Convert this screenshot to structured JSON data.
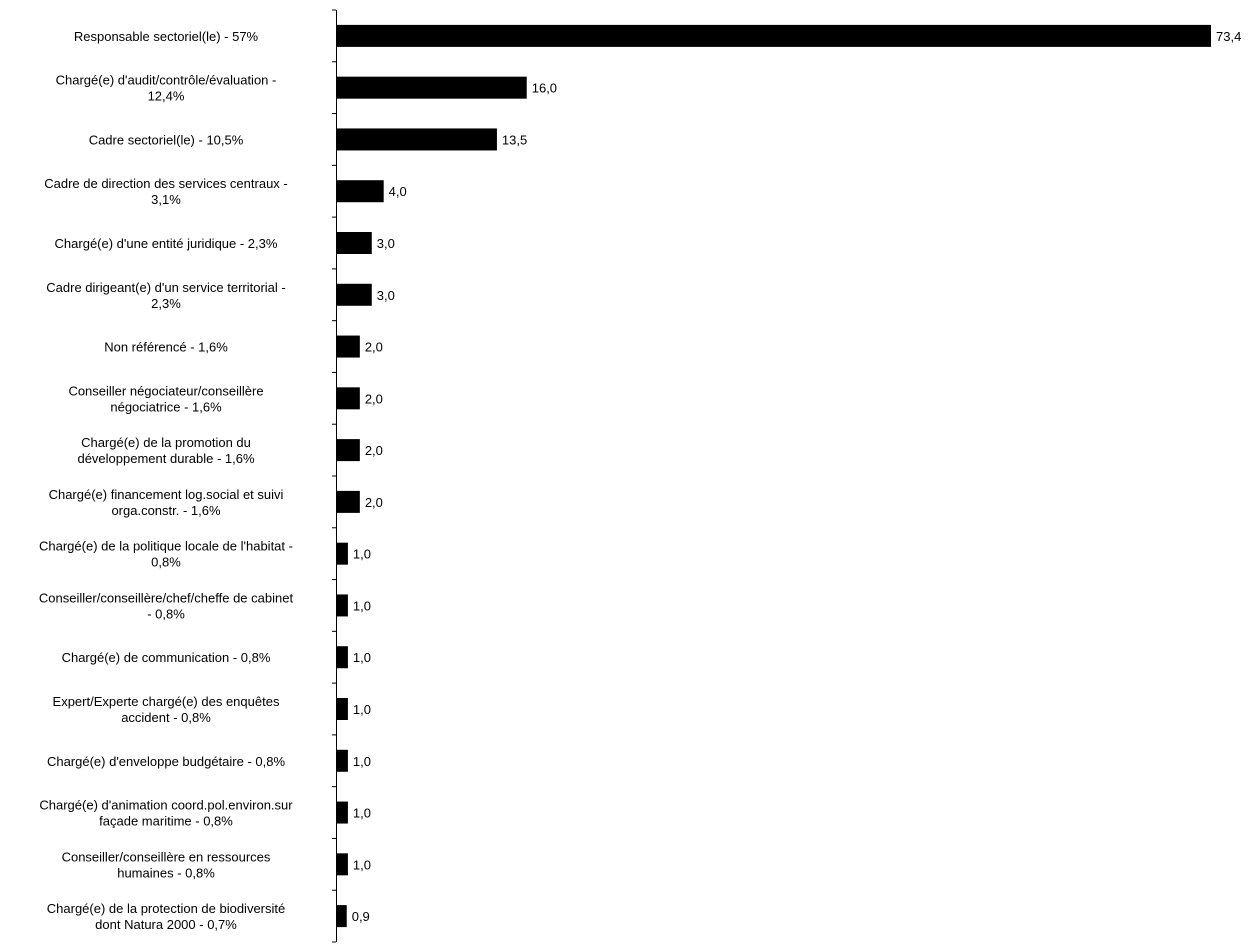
{
  "chart_data": {
    "type": "bar",
    "orientation": "horizontal",
    "title": "",
    "xlabel": "",
    "ylabel": "",
    "grid": false,
    "legend": "none",
    "bar_color": "#000000",
    "xlim": [
      0,
      73.4
    ],
    "categories": [
      [
        "Responsable sectoriel(le) - 57%"
      ],
      [
        "Chargé(e) d'audit/contrôle/évaluation -",
        "12,4%"
      ],
      [
        "Cadre sectoriel(le) - 10,5%"
      ],
      [
        "Cadre de direction des services centraux -",
        "3,1%"
      ],
      [
        "Chargé(e) d'une entité juridique - 2,3%"
      ],
      [
        "Cadre dirigeant(e) d'un service territorial -",
        "2,3%"
      ],
      [
        "Non référencé - 1,6%"
      ],
      [
        "Conseiller négociateur/conseillère",
        "négociatrice - 1,6%"
      ],
      [
        "Chargé(e) de la promotion du",
        "développement durable - 1,6%"
      ],
      [
        "Chargé(e) financement log.social et suivi",
        "orga.constr. - 1,6%"
      ],
      [
        "Chargé(e) de la politique locale de l'habitat -",
        "0,8%"
      ],
      [
        "Conseiller/conseillère/chef/cheffe de cabinet",
        "- 0,8%"
      ],
      [
        "Chargé(e) de communication - 0,8%"
      ],
      [
        "Expert/Experte chargé(e) des enquêtes",
        "accident - 0,8%"
      ],
      [
        "Chargé(e) d'enveloppe budgétaire - 0,8%"
      ],
      [
        "Chargé(e) d'animation coord.pol.environ.sur",
        "façade maritime - 0,8%"
      ],
      [
        "Conseiller/conseillère en ressources",
        "humaines - 0,8%"
      ],
      [
        "Chargé(e) de la protection de biodiversité",
        "dont Natura 2000 - 0,7%"
      ]
    ],
    "values": [
      73.4,
      16.0,
      13.5,
      4.0,
      3.0,
      3.0,
      2.0,
      2.0,
      2.0,
      2.0,
      1.0,
      1.0,
      1.0,
      1.0,
      1.0,
      1.0,
      1.0,
      0.9
    ],
    "value_labels": [
      "73,4",
      "16,0",
      "13,5",
      "4,0",
      "3,0",
      "3,0",
      "2,0",
      "2,0",
      "2,0",
      "2,0",
      "1,0",
      "1,0",
      "1,0",
      "1,0",
      "1,0",
      "1,0",
      "1,0",
      "0,9"
    ]
  }
}
